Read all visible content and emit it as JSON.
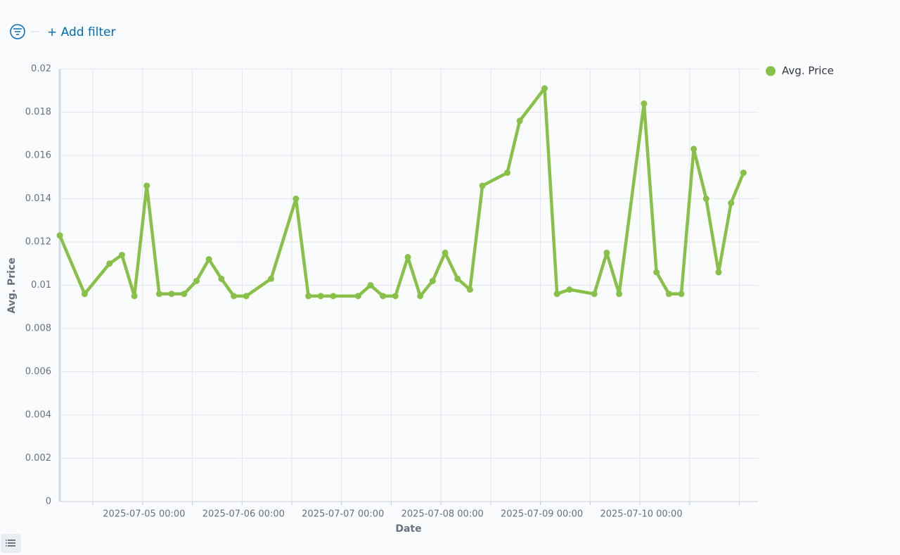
{
  "filter_bar": {
    "add_filter": "+ Add filter"
  },
  "chart_data": {
    "type": "line",
    "x_label": "Date",
    "y_label": "Avg. Price",
    "x": [
      "2025-07-04 04:00",
      "2025-07-04 10:00",
      "2025-07-04 16:00",
      "2025-07-04 19:00",
      "2025-07-04 22:00",
      "2025-07-05 01:00",
      "2025-07-05 04:00",
      "2025-07-05 07:00",
      "2025-07-05 10:00",
      "2025-07-05 13:00",
      "2025-07-05 16:00",
      "2025-07-05 19:00",
      "2025-07-05 22:00",
      "2025-07-06 01:00",
      "2025-07-06 07:00",
      "2025-07-06 13:00",
      "2025-07-06 16:00",
      "2025-07-06 19:00",
      "2025-07-06 22:00",
      "2025-07-07 04:00",
      "2025-07-07 07:00",
      "2025-07-07 10:00",
      "2025-07-07 13:00",
      "2025-07-07 16:00",
      "2025-07-07 19:00",
      "2025-07-07 22:00",
      "2025-07-08 01:00",
      "2025-07-08 04:00",
      "2025-07-08 07:00",
      "2025-07-08 10:00",
      "2025-07-08 16:00",
      "2025-07-08 19:00",
      "2025-07-09 01:00",
      "2025-07-09 04:00",
      "2025-07-09 07:00",
      "2025-07-09 13:00",
      "2025-07-09 16:00",
      "2025-07-09 19:00",
      "2025-07-10 01:00",
      "2025-07-10 04:00",
      "2025-07-10 07:00",
      "2025-07-10 10:00",
      "2025-07-10 13:00",
      "2025-07-10 16:00",
      "2025-07-10 19:00",
      "2025-07-10 22:00",
      "2025-07-11 01:00"
    ],
    "series": [
      {
        "name": "Avg. Price",
        "color": "#88c048",
        "values": [
          0.0123,
          0.0096,
          0.011,
          0.0114,
          0.0095,
          0.0146,
          0.0096,
          0.0096,
          0.0096,
          0.0102,
          0.0112,
          0.0103,
          0.0095,
          0.0095,
          0.0103,
          0.014,
          0.0095,
          0.0095,
          0.0095,
          0.0095,
          0.01,
          0.0095,
          0.0095,
          0.0113,
          0.0095,
          0.0102,
          0.0115,
          0.0103,
          0.0098,
          0.0146,
          0.0152,
          0.0176,
          0.0191,
          0.0096,
          0.0098,
          0.0096,
          0.0115,
          0.0096,
          0.0184,
          0.0106,
          0.0096,
          0.0096,
          0.0163,
          0.014,
          0.0106,
          0.0138,
          0.0152
        ]
      }
    ],
    "xlim": [
      "2025-07-04 04:00",
      "2025-07-11 04:30"
    ],
    "xticks": [
      {
        "value": "2025-07-04 12:00",
        "label": null
      },
      "2025-07-05 00:00",
      {
        "value": "2025-07-05 12:00",
        "label": null
      },
      "2025-07-06 00:00",
      {
        "value": "2025-07-06 12:00",
        "label": null
      },
      "2025-07-07 00:00",
      {
        "value": "2025-07-07 12:00",
        "label": null
      },
      "2025-07-08 00:00",
      {
        "value": "2025-07-08 12:00",
        "label": null
      },
      "2025-07-09 00:00",
      {
        "value": "2025-07-09 12:00",
        "label": null
      },
      "2025-07-10 00:00",
      {
        "value": "2025-07-10 12:00",
        "label": null
      },
      {
        "value": "2025-07-11 00:00",
        "label": null
      }
    ],
    "ylim": [
      0,
      0.02
    ],
    "yticks": [
      0,
      0.002,
      0.004,
      0.006,
      0.008,
      0.01,
      0.012,
      0.014,
      0.016,
      0.018,
      0.02
    ],
    "grid": true,
    "legend": "right"
  }
}
